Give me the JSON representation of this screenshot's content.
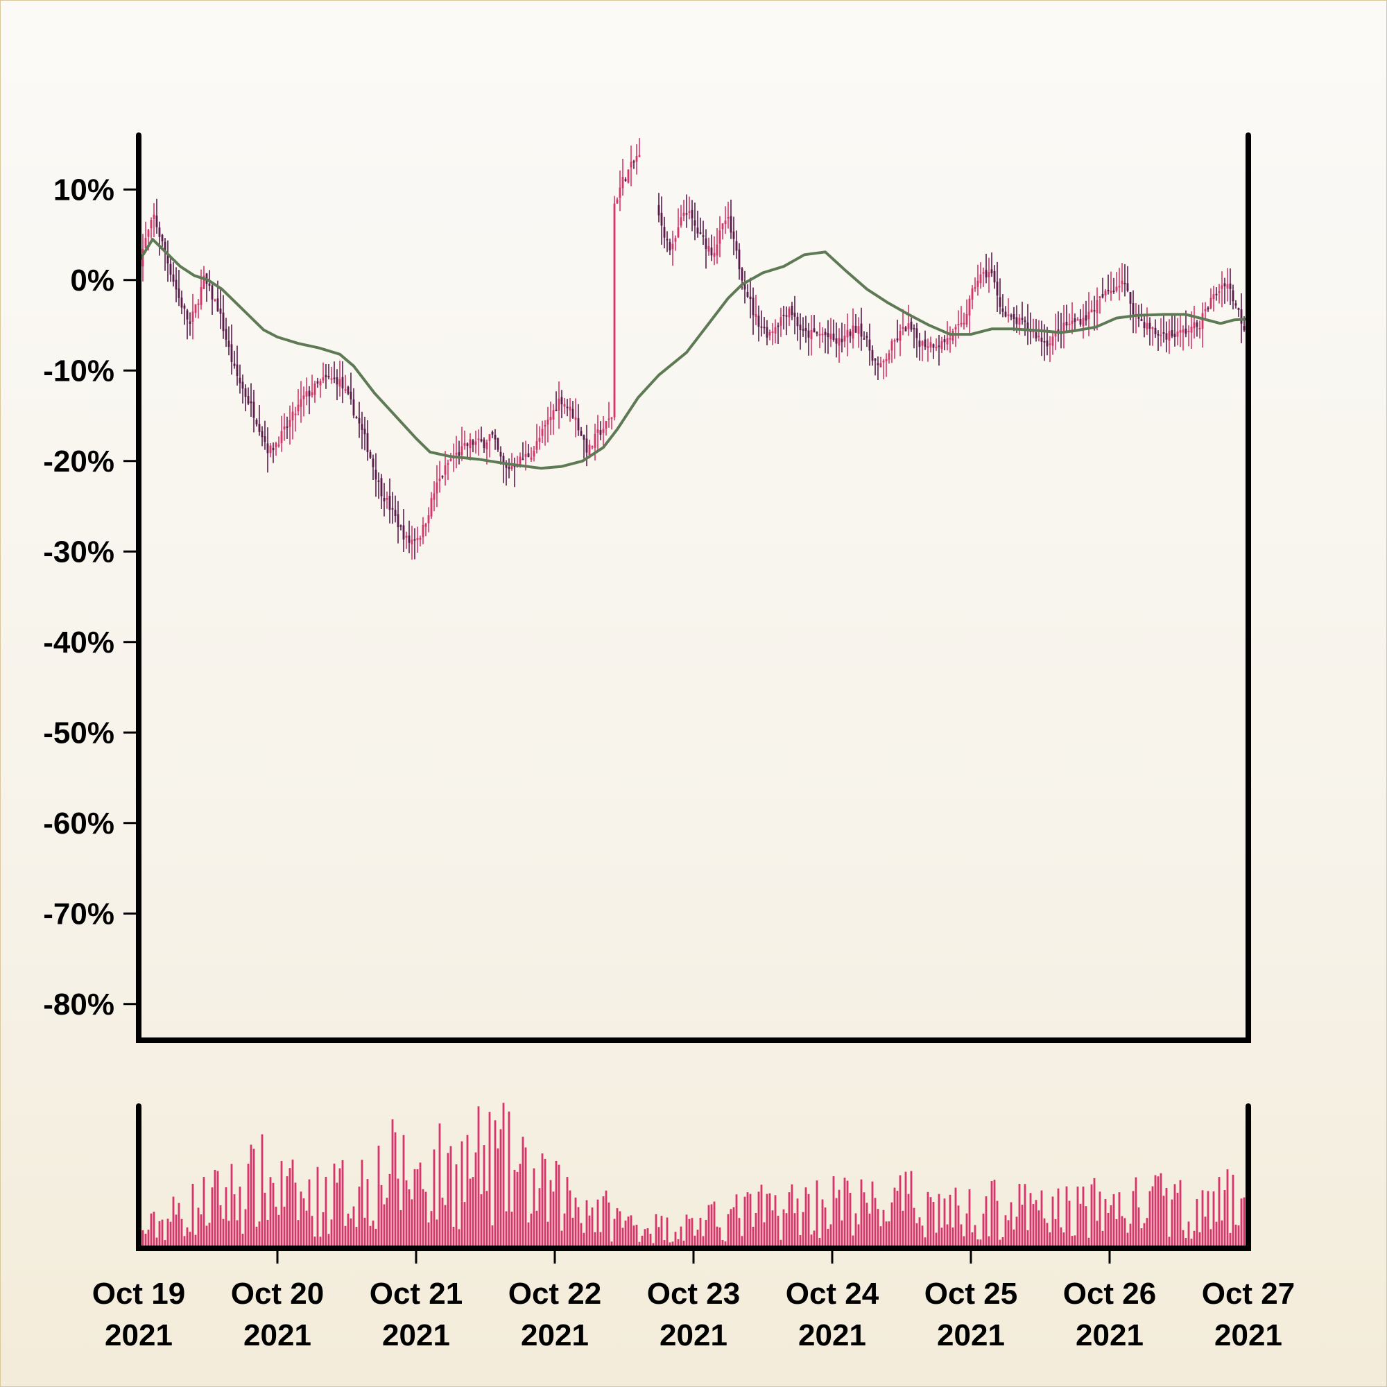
{
  "chart_data": [
    {
      "type": "candlestick",
      "x_start": "2021-10-19",
      "x_end": "2021-10-27",
      "xlim_days": [
        0,
        8
      ],
      "ylim": [
        -84,
        16
      ],
      "yticks": [
        10,
        0,
        -10,
        -20,
        -30,
        -40,
        -50,
        -60,
        -70,
        -80
      ],
      "ytick_labels": [
        "10%",
        "0%",
        "-10%",
        "-20%",
        "-30%",
        "-40%",
        "-50%",
        "-60%",
        "-70%",
        "-80%"
      ],
      "grid": false,
      "colors": {
        "up": "#d9336a",
        "down": "#5a1a4a",
        "ma": "#5e7a55",
        "axis": "#000000"
      },
      "gap_days": [
        3.62,
        3.75
      ],
      "price_anchors": [
        [
          0.0,
          1
        ],
        [
          0.05,
          4
        ],
        [
          0.12,
          7
        ],
        [
          0.2,
          3
        ],
        [
          0.3,
          -2
        ],
        [
          0.38,
          -5
        ],
        [
          0.48,
          0
        ],
        [
          0.58,
          -3
        ],
        [
          0.7,
          -10
        ],
        [
          0.85,
          -15
        ],
        [
          0.95,
          -19
        ],
        [
          1.05,
          -17
        ],
        [
          1.2,
          -13
        ],
        [
          1.35,
          -11
        ],
        [
          1.45,
          -11
        ],
        [
          1.55,
          -14
        ],
        [
          1.65,
          -18
        ],
        [
          1.75,
          -23
        ],
        [
          1.85,
          -26
        ],
        [
          1.95,
          -29
        ],
        [
          2.05,
          -28
        ],
        [
          2.15,
          -23
        ],
        [
          2.25,
          -20
        ],
        [
          2.4,
          -18
        ],
        [
          2.5,
          -18
        ],
        [
          2.55,
          -17
        ],
        [
          2.65,
          -21
        ],
        [
          2.75,
          -20
        ],
        [
          2.85,
          -19
        ],
        [
          2.95,
          -16
        ],
        [
          3.05,
          -13
        ],
        [
          3.15,
          -15
        ],
        [
          3.25,
          -19
        ],
        [
          3.32,
          -17
        ],
        [
          3.38,
          -16
        ],
        [
          3.42,
          -15
        ],
        [
          3.43,
          8
        ],
        [
          3.5,
          11
        ],
        [
          3.58,
          13
        ],
        [
          3.61,
          14
        ],
        [
          3.76,
          7
        ],
        [
          3.85,
          3
        ],
        [
          3.95,
          8
        ],
        [
          4.05,
          5
        ],
        [
          4.15,
          3
        ],
        [
          4.25,
          7
        ],
        [
          4.35,
          1
        ],
        [
          4.45,
          -4
        ],
        [
          4.55,
          -6
        ],
        [
          4.7,
          -3
        ],
        [
          4.8,
          -6
        ],
        [
          4.95,
          -6
        ],
        [
          5.05,
          -7
        ],
        [
          5.2,
          -5
        ],
        [
          5.35,
          -10
        ],
        [
          5.45,
          -7
        ],
        [
          5.55,
          -5
        ],
        [
          5.65,
          -7
        ],
        [
          5.8,
          -7
        ],
        [
          5.95,
          -5
        ],
        [
          6.05,
          0
        ],
        [
          6.15,
          1
        ],
        [
          6.25,
          -4
        ],
        [
          6.4,
          -5
        ],
        [
          6.55,
          -7
        ],
        [
          6.7,
          -5
        ],
        [
          6.85,
          -4
        ],
        [
          6.95,
          -2
        ],
        [
          7.1,
          0
        ],
        [
          7.2,
          -4
        ],
        [
          7.35,
          -6
        ],
        [
          7.5,
          -6
        ],
        [
          7.65,
          -5
        ],
        [
          7.75,
          -2
        ],
        [
          7.85,
          0
        ],
        [
          7.95,
          -4
        ],
        [
          8.0,
          -6
        ]
      ],
      "moving_average": [
        [
          0.0,
          2
        ],
        [
          0.1,
          4.5
        ],
        [
          0.2,
          3
        ],
        [
          0.3,
          1.5
        ],
        [
          0.4,
          0.5
        ],
        [
          0.5,
          0
        ],
        [
          0.6,
          -1
        ],
        [
          0.7,
          -2.5
        ],
        [
          0.8,
          -4
        ],
        [
          0.9,
          -5.5
        ],
        [
          1.0,
          -6.3
        ],
        [
          1.15,
          -7
        ],
        [
          1.3,
          -7.5
        ],
        [
          1.45,
          -8.2
        ],
        [
          1.55,
          -9.5
        ],
        [
          1.7,
          -12.5
        ],
        [
          1.85,
          -15
        ],
        [
          2.0,
          -17.5
        ],
        [
          2.1,
          -19
        ],
        [
          2.25,
          -19.5
        ],
        [
          2.45,
          -19.8
        ],
        [
          2.65,
          -20.3
        ],
        [
          2.9,
          -20.8
        ],
        [
          3.05,
          -20.6
        ],
        [
          3.2,
          -20
        ],
        [
          3.35,
          -18.5
        ],
        [
          3.45,
          -16.5
        ],
        [
          3.6,
          -13
        ],
        [
          3.75,
          -10.5
        ],
        [
          3.95,
          -8
        ],
        [
          4.1,
          -5
        ],
        [
          4.25,
          -2
        ],
        [
          4.35,
          -0.5
        ],
        [
          4.5,
          0.8
        ],
        [
          4.65,
          1.5
        ],
        [
          4.8,
          2.8
        ],
        [
          4.95,
          3.1
        ],
        [
          5.1,
          1
        ],
        [
          5.25,
          -1
        ],
        [
          5.4,
          -2.5
        ],
        [
          5.55,
          -3.8
        ],
        [
          5.7,
          -5
        ],
        [
          5.85,
          -6
        ],
        [
          6.0,
          -6
        ],
        [
          6.15,
          -5.4
        ],
        [
          6.3,
          -5.4
        ],
        [
          6.5,
          -5.6
        ],
        [
          6.65,
          -5.8
        ],
        [
          6.75,
          -5.6
        ],
        [
          6.9,
          -5.2
        ],
        [
          7.05,
          -4.2
        ],
        [
          7.2,
          -3.9
        ],
        [
          7.4,
          -3.8
        ],
        [
          7.55,
          -3.8
        ],
        [
          7.65,
          -4.2
        ],
        [
          7.8,
          -4.8
        ],
        [
          7.9,
          -4.4
        ],
        [
          8.0,
          -4.3
        ]
      ],
      "volume_ylim": [
        0,
        100
      ],
      "volume_anchors": [
        [
          0.0,
          15
        ],
        [
          0.3,
          35
        ],
        [
          0.6,
          50
        ],
        [
          0.9,
          65
        ],
        [
          1.2,
          45
        ],
        [
          1.5,
          55
        ],
        [
          1.8,
          75
        ],
        [
          2.1,
          70
        ],
        [
          2.4,
          80
        ],
        [
          2.6,
          85
        ],
        [
          2.9,
          55
        ],
        [
          3.2,
          45
        ],
        [
          3.5,
          25
        ],
        [
          3.8,
          20
        ],
        [
          4.1,
          25
        ],
        [
          4.4,
          35
        ],
        [
          4.7,
          40
        ],
        [
          5.0,
          45
        ],
        [
          5.3,
          40
        ],
        [
          5.6,
          45
        ],
        [
          5.9,
          35
        ],
        [
          6.2,
          40
        ],
        [
          6.5,
          35
        ],
        [
          6.8,
          40
        ],
        [
          7.1,
          40
        ],
        [
          7.4,
          45
        ],
        [
          7.7,
          35
        ],
        [
          8.0,
          55
        ]
      ]
    }
  ],
  "x_axis": {
    "ticks": [
      {
        "day": 0,
        "line1": "Oct 19",
        "line2": "2021"
      },
      {
        "day": 1,
        "line1": "Oct 20",
        "line2": "2021"
      },
      {
        "day": 2,
        "line1": "Oct 21",
        "line2": "2021"
      },
      {
        "day": 3,
        "line1": "Oct 22",
        "line2": "2021"
      },
      {
        "day": 4,
        "line1": "Oct 23",
        "line2": "2021"
      },
      {
        "day": 5,
        "line1": "Oct 24",
        "line2": "2021"
      },
      {
        "day": 6,
        "line1": "Oct 25",
        "line2": "2021"
      },
      {
        "day": 7,
        "line1": "Oct 26",
        "line2": "2021"
      },
      {
        "day": 8,
        "line1": "Oct 27",
        "line2": "2021"
      }
    ]
  }
}
